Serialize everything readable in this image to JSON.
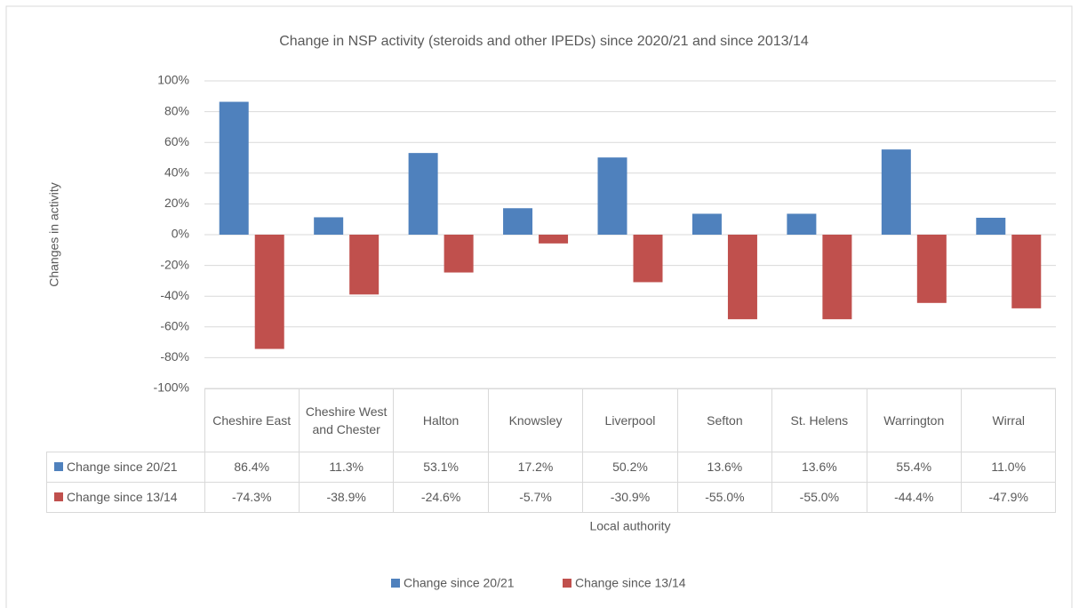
{
  "chart_data": {
    "type": "bar",
    "title": "Change in NSP activity (steroids and other IPEDs) since 2020/21 and since 2013/14",
    "x_label": "Local authority",
    "y_label": "Changes in activity",
    "categories": [
      "Cheshire East",
      "Cheshire West and Chester",
      "Halton",
      "Knowsley",
      "Liverpool",
      "Sefton",
      "St. Helens",
      "Warrington",
      "Wirral"
    ],
    "series": [
      {
        "name": "Change since 20/21",
        "color": "#4f81bd",
        "values": [
          86.4,
          11.3,
          53.1,
          17.2,
          50.2,
          13.6,
          13.6,
          55.4,
          11.0
        ],
        "value_labels": [
          "86.4%",
          "11.3%",
          "53.1%",
          "17.2%",
          "50.2%",
          "13.6%",
          "13.6%",
          "55.4%",
          "11.0%"
        ]
      },
      {
        "name": "Change since 13/14",
        "color": "#c0504d",
        "values": [
          -74.3,
          -38.9,
          -24.6,
          -5.7,
          -30.9,
          -55.0,
          -55.0,
          -44.4,
          -47.9
        ],
        "value_labels": [
          "-74.3%",
          "-38.9%",
          "-24.6%",
          "-5.7%",
          "-30.9%",
          "-55.0%",
          "-55.0%",
          "-44.4%",
          "-47.9%"
        ]
      }
    ],
    "ylim": [
      -100,
      100
    ],
    "yticks": [
      {
        "value": -100,
        "label": "-100%"
      },
      {
        "value": -80,
        "label": "-80%"
      },
      {
        "value": -60,
        "label": "-60%"
      },
      {
        "value": -40,
        "label": "-40%"
      },
      {
        "value": -20,
        "label": "-20%"
      },
      {
        "value": 0,
        "label": "0%"
      },
      {
        "value": 20,
        "label": "20%"
      },
      {
        "value": 40,
        "label": "40%"
      },
      {
        "value": 60,
        "label": "60%"
      },
      {
        "value": 80,
        "label": "80%"
      },
      {
        "value": 100,
        "label": "100%"
      }
    ],
    "grid": true,
    "legend": "bottom"
  }
}
